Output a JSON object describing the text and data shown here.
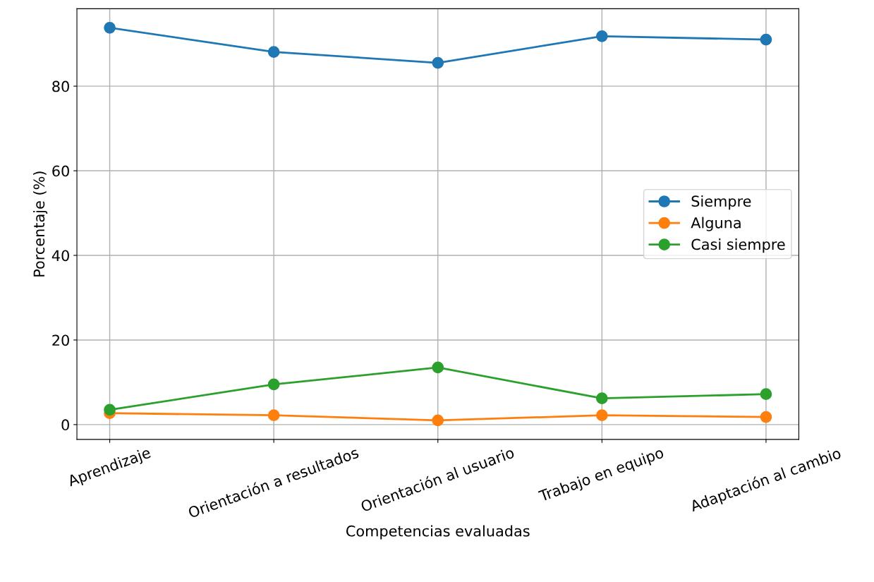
{
  "chart_data": {
    "type": "line",
    "xlabel": "Competencias evaluadas",
    "ylabel": "Porcentaje (%)",
    "categories": [
      "Aprendizaje",
      "Orientación a resultados",
      "Orientación al usuario",
      "Trabajo en equipo",
      "Adaptación al cambio"
    ],
    "series": [
      {
        "name": "Siempre",
        "color": "#1f77b4",
        "values": [
          93.8,
          88.1,
          85.5,
          91.8,
          91.0
        ]
      },
      {
        "name": "Alguna",
        "color": "#ff7f0e",
        "values": [
          2.7,
          2.2,
          1.0,
          2.2,
          1.8
        ]
      },
      {
        "name": "Casi siempre",
        "color": "#2ca02c",
        "values": [
          3.5,
          9.5,
          13.5,
          6.2,
          7.2
        ]
      }
    ],
    "ylim": [
      -3.5,
      98.3
    ],
    "yticks": [
      0,
      20,
      40,
      60,
      80
    ],
    "grid": true,
    "legend": "center right",
    "marker": "circle",
    "line_style": "solid"
  }
}
